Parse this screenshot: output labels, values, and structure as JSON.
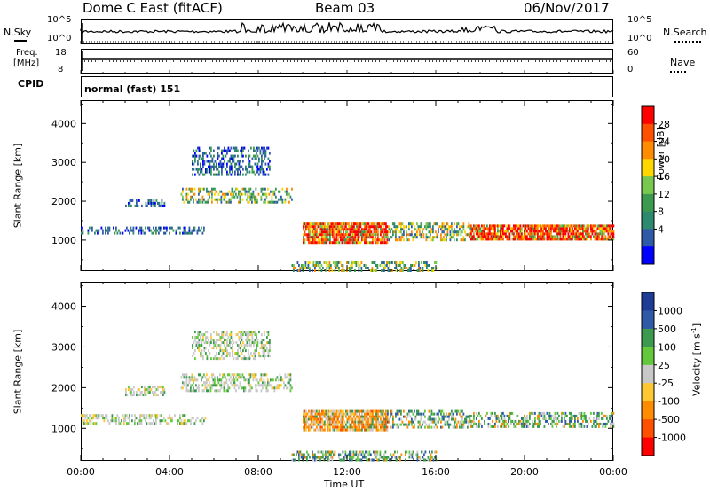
{
  "header": {
    "station": "Dome C East (fitACF)",
    "beam": "Beam 03",
    "date": "06/Nov/2017"
  },
  "top_panels": {
    "nsky_label": "N.Sky",
    "nsky_tick_top": "10^5",
    "nsky_tick_bottom": "10^0",
    "nsearch_label": "N.Search",
    "freq_label": "Freq.",
    "freq_unit": "[MHz]",
    "freq_tick_top": "18",
    "freq_tick_bottom": "8",
    "nave_label": "Nave",
    "nave_tick_top": "60",
    "nave_tick_bottom": "0",
    "cpid_label": "CPID",
    "cpid_value": "normal (fast) 151"
  },
  "chart_data": [
    {
      "type": "heatmap",
      "name": "Power",
      "xlabel": "Time UT",
      "ylabel": "Slant Range [km]",
      "xlim_hours": [
        0,
        24
      ],
      "ylim": [
        200,
        4600
      ],
      "yticks": [
        "1000",
        "2000",
        "3000",
        "4000"
      ],
      "colorbar_label": "Power [dB]",
      "colorbar_ticks": [
        "28",
        "24",
        "20",
        "16",
        "12",
        "8",
        "4"
      ],
      "colorbar_colors": [
        "#ff0000",
        "#ff5000",
        "#ff8c00",
        "#ffd700",
        "#78c850",
        "#3c9a50",
        "#2d8a6e",
        "#2f5aa8",
        "#0000ff"
      ],
      "echo_regions": [
        {
          "t0": 0.0,
          "t1": 5.6,
          "r0": 1150,
          "r1": 1350,
          "level": "low"
        },
        {
          "t0": 2.0,
          "t1": 3.8,
          "r0": 1850,
          "r1": 2050,
          "level": "low"
        },
        {
          "t0": 4.5,
          "t1": 9.5,
          "r0": 1950,
          "r1": 2350,
          "level": "mid"
        },
        {
          "t0": 5.0,
          "t1": 8.5,
          "r0": 2700,
          "r1": 3400,
          "level": "low"
        },
        {
          "t0": 10.0,
          "t1": 13.8,
          "r0": 950,
          "r1": 1450,
          "level": "high"
        },
        {
          "t0": 13.8,
          "t1": 17.5,
          "r0": 1000,
          "r1": 1450,
          "level": "mid"
        },
        {
          "t0": 17.5,
          "t1": 24.0,
          "r0": 1050,
          "r1": 1400,
          "level": "high"
        },
        {
          "t0": 9.5,
          "t1": 16.0,
          "r0": 200,
          "r1": 450,
          "level": "mid"
        }
      ]
    },
    {
      "type": "heatmap",
      "name": "Velocity",
      "xlabel": "Time UT",
      "ylabel": "Slant Range [km]",
      "xlim_hours": [
        0,
        24
      ],
      "ylim": [
        200,
        4600
      ],
      "yticks": [
        "1000",
        "2000",
        "3000",
        "4000"
      ],
      "colorbar_label": "Velocity [m s",
      "colorbar_label_sup": "-1",
      "colorbar_label_end": "]",
      "colorbar_ticks": [
        "1000",
        "500",
        "100",
        "25",
        "-25",
        "-100",
        "-500",
        "-1000"
      ],
      "colorbar_colors": [
        "#1e3c96",
        "#2f5aa8",
        "#3c9a50",
        "#64c83c",
        "#c8c8c8",
        "#ffc832",
        "#ff8c00",
        "#ff5000",
        "#ff0000"
      ],
      "echo_regions": [
        {
          "t0": 0.0,
          "t1": 5.6,
          "r0": 1150,
          "r1": 1350,
          "level": "grey"
        },
        {
          "t0": 2.0,
          "t1": 3.8,
          "r0": 1850,
          "r1": 2050,
          "level": "grey"
        },
        {
          "t0": 4.5,
          "t1": 9.5,
          "r0": 1950,
          "r1": 2350,
          "level": "grey"
        },
        {
          "t0": 5.0,
          "t1": 8.5,
          "r0": 2700,
          "r1": 3400,
          "level": "grey"
        },
        {
          "t0": 10.0,
          "t1": 13.8,
          "r0": 950,
          "r1": 1450,
          "level": "orange"
        },
        {
          "t0": 13.8,
          "t1": 17.5,
          "r0": 1000,
          "r1": 1450,
          "level": "green"
        },
        {
          "t0": 17.5,
          "t1": 24.0,
          "r0": 1050,
          "r1": 1400,
          "level": "green"
        },
        {
          "t0": 9.5,
          "t1": 16.0,
          "r0": 200,
          "r1": 450,
          "level": "green"
        }
      ]
    }
  ],
  "x_axis": {
    "ticks": [
      "00:00",
      "04:00",
      "08:00",
      "12:00",
      "16:00",
      "20:00",
      "00:00"
    ],
    "label": "Time UT"
  }
}
